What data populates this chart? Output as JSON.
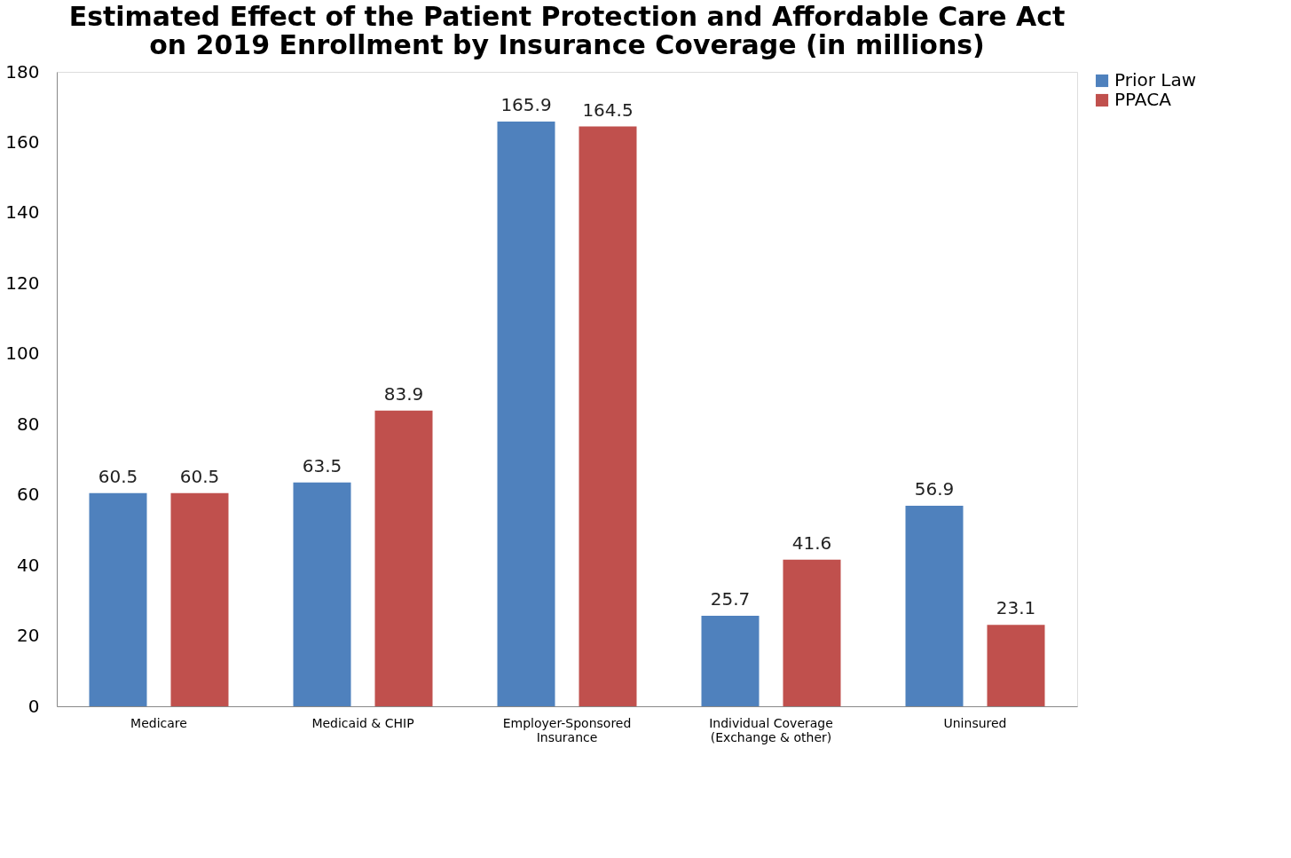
{
  "chart_data": {
    "type": "bar",
    "title": "Estimated Effect of the Patient Protection and Affordable Care Act\non 2019 Enrollment by Insurance Coverage (in millions)",
    "categories": [
      "Medicare",
      "Medicaid & CHIP",
      "Employer-Sponsored\nInsurance",
      "Individual Coverage\n(Exchange & other)",
      "Uninsured"
    ],
    "series": [
      {
        "name": "Prior Law",
        "color": "#4f81bd",
        "values": [
          60.5,
          63.5,
          165.9,
          25.7,
          56.9
        ]
      },
      {
        "name": "PPACA",
        "color": "#c0504d",
        "values": [
          60.5,
          83.9,
          164.5,
          41.6,
          23.1
        ]
      }
    ],
    "ylim": [
      0,
      180
    ],
    "yticks": [
      0,
      20,
      40,
      60,
      80,
      100,
      120,
      140,
      160,
      180
    ],
    "grid": false,
    "legend": "right",
    "data_labels": true
  }
}
